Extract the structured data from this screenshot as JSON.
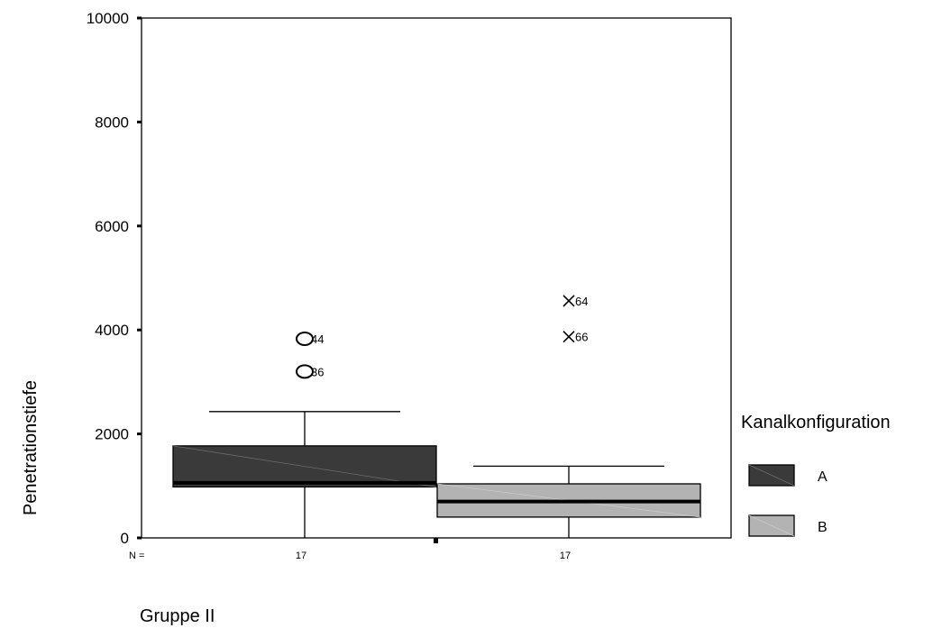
{
  "chart_data": {
    "type": "boxplot",
    "ylabel": "Penetrationstiefe",
    "xlabel": "Gruppe II",
    "ylim": [
      0,
      10000
    ],
    "yticks": [
      0,
      2000,
      4000,
      6000,
      8000,
      10000
    ],
    "n_label": "N =",
    "legend": {
      "title": "Kanalkonfiguration",
      "placement": "right",
      "items": [
        "A",
        "B"
      ]
    },
    "series": [
      {
        "name": "A",
        "n": "17",
        "color": "#3a3a3a",
        "whisker_low": 0,
        "q1": 980,
        "median": 1060,
        "q3": 1770,
        "whisker_high": 2430,
        "outliers": [
          {
            "value": 3830,
            "label": "44",
            "marker": "circle"
          },
          {
            "value": 3200,
            "label": "36",
            "marker": "circle"
          }
        ]
      },
      {
        "name": "B",
        "n": "17",
        "color": "#b3b3b3",
        "whisker_low": 0,
        "q1": 400,
        "median": 700,
        "q3": 1040,
        "whisker_high": 1380,
        "outliers": [
          {
            "value": 4560,
            "label": "64",
            "marker": "cross"
          },
          {
            "value": 3870,
            "label": "66",
            "marker": "cross"
          }
        ]
      }
    ]
  }
}
